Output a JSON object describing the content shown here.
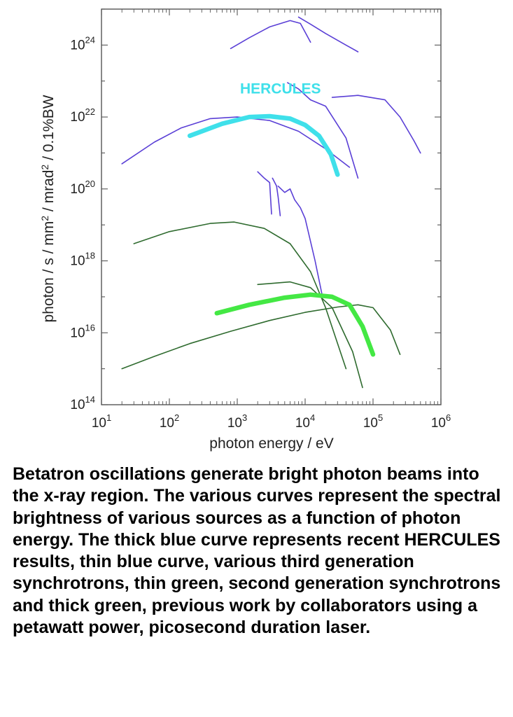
{
  "chart_data": {
    "type": "line",
    "title": "",
    "xlabel": "photon energy / eV",
    "ylabel": "photon / s / mm² / mrad² / 0.1%BW",
    "x_scale": "log",
    "y_scale": "log",
    "xlim": [
      10,
      1000000
    ],
    "ylim": [
      100000000000000.0,
      1e+25
    ],
    "grid": false,
    "x_ticks": [
      {
        "value": 10,
        "base": "10",
        "exp": "1"
      },
      {
        "value": 100,
        "base": "10",
        "exp": "2"
      },
      {
        "value": 1000,
        "base": "10",
        "exp": "3"
      },
      {
        "value": 10000,
        "base": "10",
        "exp": "4"
      },
      {
        "value": 100000,
        "base": "10",
        "exp": "5"
      },
      {
        "value": 1000000,
        "base": "10",
        "exp": "6"
      }
    ],
    "y_ticks": [
      {
        "value": 100000000000000.0,
        "base": "10",
        "exp": "14"
      },
      {
        "value": 1e+16,
        "base": "10",
        "exp": "16"
      },
      {
        "value": 1e+18,
        "base": "10",
        "exp": "18"
      },
      {
        "value": 1e+20,
        "base": "10",
        "exp": "20"
      },
      {
        "value": 1e+22,
        "base": "10",
        "exp": "22"
      },
      {
        "value": 1e+24,
        "base": "10",
        "exp": "24"
      }
    ],
    "annotation": {
      "text": "HERCULES",
      "x": 1100,
      "y": 4.5e+22,
      "color": "#3fe0ea"
    },
    "series": [
      {
        "color": "#5a3fd6",
        "width": 1.6,
        "points": [
          [
            800,
            8e+23
          ],
          [
            1500,
            1.6e+24
          ],
          [
            3000,
            3.2e+24
          ],
          [
            6000,
            4.8e+24
          ],
          [
            8500,
            4e+24
          ],
          [
            12000,
            1.2e+24
          ]
        ]
      },
      {
        "color": "#5a3fd6",
        "width": 1.6,
        "points": [
          [
            8000,
            6e+24
          ],
          [
            12000,
            3.8e+24
          ],
          [
            20000,
            2.1e+24
          ],
          [
            40000,
            1e+24
          ],
          [
            60000,
            6.5e+23
          ]
        ]
      },
      {
        "color": "#5a3fd6",
        "width": 1.6,
        "points": [
          [
            20,
            5e+20
          ],
          [
            60,
            2e+21
          ],
          [
            150,
            5e+21
          ],
          [
            400,
            9e+21
          ],
          [
            1000,
            1e+22
          ],
          [
            3000,
            8e+21
          ],
          [
            8000,
            4e+21
          ],
          [
            20000,
            1.3e+21
          ],
          [
            45000,
            4e+20
          ]
        ]
      },
      {
        "color": "#5a3fd6",
        "width": 1.6,
        "points": [
          [
            5500,
            9e+22
          ],
          [
            8000,
            6e+22
          ],
          [
            12000,
            3e+22
          ],
          [
            20000,
            2e+22
          ],
          [
            40000,
            2.6e+21
          ],
          [
            60000,
            2e+20
          ]
        ]
      },
      {
        "color": "#5a3fd6",
        "width": 1.6,
        "points": [
          [
            25000,
            3.5e+22
          ],
          [
            60000,
            4e+22
          ],
          [
            150000,
            3e+22
          ],
          [
            250000,
            1e+22
          ],
          [
            400000,
            2.2e+21
          ],
          [
            500000,
            1e+21
          ]
        ]
      },
      {
        "color": "#5a3fd6",
        "width": 1.6,
        "points": [
          [
            2000,
            3e+20
          ],
          [
            2500,
            2e+20
          ],
          [
            3000,
            1.5e+20
          ],
          [
            3200,
            2e+19
          ]
        ]
      },
      {
        "color": "#5a3fd6",
        "width": 1.6,
        "points": [
          [
            3300,
            2e+20
          ],
          [
            3800,
            1.2e+20
          ],
          [
            4000,
            6e+19
          ],
          [
            4300,
            1.8e+19
          ]
        ]
      },
      {
        "color": "#5a3fd6",
        "width": 1.6,
        "points": [
          [
            4000,
            1.2e+20
          ],
          [
            5000,
            8e+19
          ],
          [
            6000,
            1e+20
          ],
          [
            7000,
            5e+19
          ],
          [
            8500,
            3e+19
          ],
          [
            10000,
            1.5e+19
          ],
          [
            14000,
            1e+18
          ],
          [
            18000,
            1e+17
          ]
        ]
      },
      {
        "color": "#2f6b2f",
        "width": 1.6,
        "points": [
          [
            30,
            3e+18
          ],
          [
            100,
            6.5e+18
          ],
          [
            400,
            1.1e+19
          ],
          [
            900,
            1.2e+19
          ],
          [
            2500,
            8e+18
          ],
          [
            6000,
            3e+18
          ],
          [
            12000,
            5e+17
          ],
          [
            20000,
            5e+16
          ],
          [
            40000,
            1000000000000000.0
          ]
        ]
      },
      {
        "color": "#2f6b2f",
        "width": 1.6,
        "points": [
          [
            2000,
            2.2e+17
          ],
          [
            6000,
            2.6e+17
          ],
          [
            12000,
            1.8e+17
          ],
          [
            25000,
            5e+16
          ],
          [
            50000,
            3000000000000000.0
          ],
          [
            70000,
            300000000000000.0
          ]
        ]
      },
      {
        "color": "#2f6b2f",
        "width": 1.6,
        "points": [
          [
            20,
            1000000000000000.0
          ],
          [
            60,
            2200000000000000.0
          ],
          [
            200,
            5000000000000000.0
          ],
          [
            800,
            1.1e+16
          ],
          [
            3000,
            2.2e+16
          ],
          [
            10000,
            3.7e+16
          ],
          [
            30000,
            5.2e+16
          ],
          [
            60000,
            6e+16
          ],
          [
            100000,
            5e+16
          ],
          [
            180000,
            1.2e+16
          ],
          [
            250000,
            2500000000000000.0
          ]
        ]
      },
      {
        "color": "#3fe0ea",
        "width": 6.5,
        "points": [
          [
            200,
            3e+21
          ],
          [
            600,
            6.5e+21
          ],
          [
            1500,
            1e+22
          ],
          [
            3000,
            1.05e+22
          ],
          [
            6000,
            9e+21
          ],
          [
            10000,
            6e+21
          ],
          [
            16000,
            3e+21
          ],
          [
            24000,
            9e+20
          ],
          [
            30000,
            2.5e+20
          ]
        ]
      },
      {
        "color": "#44e844",
        "width": 6.5,
        "points": [
          [
            500,
            3.5e+16
          ],
          [
            1500,
            6e+16
          ],
          [
            5000,
            9.5e+16
          ],
          [
            12000,
            1.15e+17
          ],
          [
            25000,
            1e+17
          ],
          [
            45000,
            6e+16
          ],
          [
            70000,
            1.5e+16
          ],
          [
            100000,
            2500000000000000.0
          ]
        ]
      }
    ]
  },
  "caption": "Betatron oscillations generate bright photon beams into the x-ray region. The various curves represent the spectral brightness of various sources as a function of photon energy. The thick blue curve represents recent HERCULES results, thin blue curve, various third generation synchrotrons,  thin green, second generation synchrotrons and thick green, previous work by collaborators using a petawatt power,  picosecond duration laser."
}
